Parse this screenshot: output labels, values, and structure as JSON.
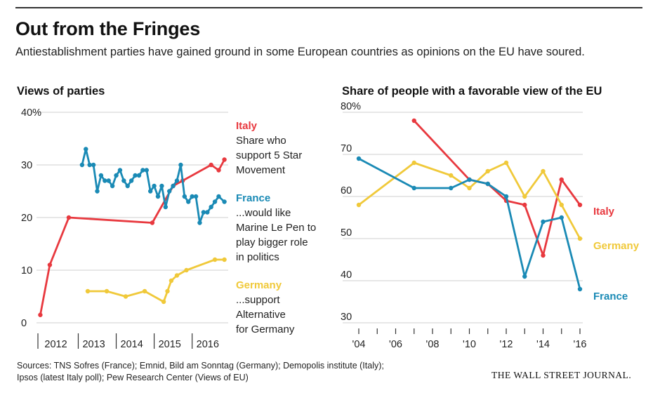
{
  "title": "Out from the Fringes",
  "subtitle": "Antiestablishment parties have gained ground in some European countries as opinions on the EU have soured.",
  "sources_line1": "Sources: TNS Sofres (France); Emnid, Bild am Sonntag (Germany); Demopolis institute (Italy);",
  "sources_line2": "Ipsos (latest Italy poll); Pew Research Center (Views of EU)",
  "credit": "THE WALL STREET JOURNAL.",
  "colors": {
    "italy": "#e8393f",
    "france": "#1a8ab5",
    "germany": "#f0c93a",
    "grid": "#cfcfcf",
    "axis": "#333333"
  },
  "chart_data": [
    {
      "type": "line",
      "title": "Views of parties",
      "xlabel": "",
      "ylabel": "",
      "xlim": [
        2011.9,
        2016.95
      ],
      "ylim": [
        0,
        40
      ],
      "y_ticks": [
        {
          "value": 0,
          "label": "0"
        },
        {
          "value": 10,
          "label": "10"
        },
        {
          "value": 20,
          "label": "20"
        },
        {
          "value": 30,
          "label": "30"
        },
        {
          "value": 40,
          "label": "40%"
        }
      ],
      "x_ticks": [
        "2012",
        "2013",
        "2014",
        "2015",
        "2016"
      ],
      "grid": true,
      "series": [
        {
          "name": "Italy",
          "note_lines": [
            "Share who",
            "support 5 Star",
            "Movement"
          ],
          "color": "#e8393f",
          "x": [
            2012.0,
            2012.25,
            2012.75,
            2014.95,
            2015.5,
            2015.75,
            2016.5,
            2016.7,
            2016.85
          ],
          "y": [
            1.5,
            11,
            20,
            19,
            26,
            27,
            30,
            29,
            31
          ]
        },
        {
          "name": "France",
          "note_lines": [
            "...would like",
            "Marine Le Pen to",
            "play bigger role",
            "in politics"
          ],
          "color": "#1a8ab5",
          "x": [
            2013.1,
            2013.2,
            2013.3,
            2013.4,
            2013.5,
            2013.6,
            2013.7,
            2013.8,
            2013.9,
            2014.0,
            2014.1,
            2014.2,
            2014.3,
            2014.4,
            2014.5,
            2014.6,
            2014.7,
            2014.8,
            2014.9,
            2015.0,
            2015.1,
            2015.2,
            2015.3,
            2015.4,
            2015.5,
            2015.6,
            2015.7,
            2015.8,
            2015.9,
            2016.0,
            2016.1,
            2016.2,
            2016.3,
            2016.4,
            2016.5,
            2016.6,
            2016.7,
            2016.85
          ],
          "y": [
            30,
            33,
            30,
            30,
            25,
            28,
            27,
            27,
            26,
            28,
            29,
            27,
            26,
            27,
            28,
            28,
            29,
            29,
            25,
            26,
            24,
            26,
            22,
            25,
            26,
            27,
            30,
            24,
            23,
            24,
            24,
            19,
            21,
            21,
            22,
            23,
            24,
            23
          ]
        },
        {
          "name": "Germany",
          "note_lines": [
            "...support",
            "Alternative",
            "for Germany"
          ],
          "color": "#f0c93a",
          "x": [
            2013.25,
            2013.75,
            2014.25,
            2014.75,
            2015.25,
            2015.35,
            2015.45,
            2015.6,
            2015.85,
            2016.6,
            2016.85
          ],
          "y": [
            6,
            6,
            5,
            6,
            4,
            6,
            8,
            9,
            10,
            12,
            12
          ]
        }
      ]
    },
    {
      "type": "line",
      "title": "Share of people with a favorable view of the EU",
      "xlabel": "",
      "ylabel": "",
      "xlim": [
        2004,
        2016
      ],
      "ylim": [
        30,
        80
      ],
      "y_ticks": [
        {
          "value": 30,
          "label": "30"
        },
        {
          "value": 40,
          "label": "40"
        },
        {
          "value": 50,
          "label": "50"
        },
        {
          "value": 60,
          "label": "60"
        },
        {
          "value": 70,
          "label": "70"
        },
        {
          "value": 80,
          "label": "80%"
        }
      ],
      "x_ticks": [
        {
          "value": 2004,
          "label": "'04"
        },
        {
          "value": 2006,
          "label": "'06"
        },
        {
          "value": 2008,
          "label": "'08"
        },
        {
          "value": 2010,
          "label": "'10"
        },
        {
          "value": 2012,
          "label": "'12"
        },
        {
          "value": 2014,
          "label": "'14"
        },
        {
          "value": 2016,
          "label": "'16"
        }
      ],
      "grid": true,
      "series": [
        {
          "name": "Italy",
          "color": "#e8393f",
          "x": [
            2007,
            2010,
            2011,
            2012,
            2013,
            2014,
            2015,
            2016
          ],
          "y": [
            78,
            64,
            63,
            59,
            58,
            46,
            64,
            58
          ]
        },
        {
          "name": "Germany",
          "color": "#f0c93a",
          "x": [
            2004,
            2007,
            2009,
            2010,
            2011,
            2012,
            2013,
            2014,
            2015,
            2016
          ],
          "y": [
            58,
            68,
            65,
            62,
            66,
            68,
            60,
            66,
            58,
            50
          ]
        },
        {
          "name": "France",
          "color": "#1a8ab5",
          "x": [
            2004,
            2007,
            2009,
            2010,
            2011,
            2012,
            2013,
            2014,
            2015,
            2016
          ],
          "y": [
            69,
            62,
            62,
            64,
            63,
            60,
            41,
            54,
            55,
            38
          ]
        }
      ]
    }
  ]
}
